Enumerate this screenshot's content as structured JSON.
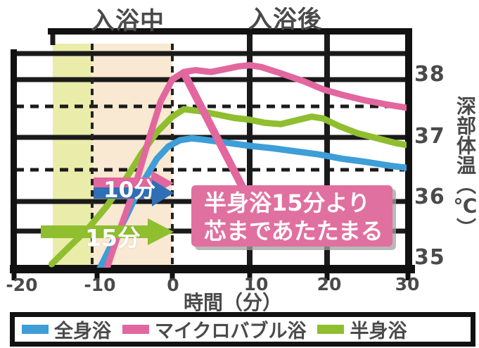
{
  "header": {
    "during_bath_label": "入浴中",
    "after_bath_label": "入浴後"
  },
  "y_axis": {
    "title": "深部体温（℃）",
    "tick_labels": [
      "38",
      "37",
      "36",
      "35"
    ]
  },
  "x_axis": {
    "title": "時間（分）",
    "tick_labels": [
      "-20",
      "-10",
      "0",
      "10",
      "20",
      "30"
    ]
  },
  "annotations": {
    "bath_10min_arrow_label": "10分",
    "bath_15min_arrow_label": "15分",
    "callout_line1": "半身浴15分より",
    "callout_line2": "芯まであたたまる"
  },
  "legend": {
    "items": [
      {
        "label": "全身浴",
        "color": "#3d9ed8"
      },
      {
        "label": "マイクロバブル浴",
        "color": "#e2679e"
      },
      {
        "label": "半身浴",
        "color": "#8fbe2f"
      }
    ]
  },
  "colors": {
    "callout_bg": "#e0709f",
    "leader_line": "#e2679e",
    "arrow_pink": "#e2679e",
    "arrow_blue": "#2f6fb6",
    "arrow_green": "#8fbe2f",
    "band_15min": "#eaeca9",
    "band_10min": "#f9e8d2",
    "grid": "#1a1a1a",
    "label_gray": "#4a4a4a"
  },
  "chart_data": {
    "type": "line",
    "xlabel": "時間（分）",
    "ylabel": "深部体温（℃）",
    "xlim": [
      -20.5,
      31.5
    ],
    "ylim": [
      34.85,
      38.7
    ],
    "x_ticks": [
      -20,
      -10,
      0,
      10,
      20,
      30
    ],
    "y_ticks": [
      38,
      37,
      36,
      35
    ],
    "grid": true,
    "legend_position": "bottom",
    "phase_bands_minutes": {
      "bath_15min_extra": [
        -15.5,
        -10.4
      ],
      "bath_10min": [
        -10.4,
        0
      ]
    },
    "annotations_text": [
      "入浴中",
      "入浴後",
      "10分",
      "15分",
      "半身浴15分より芯まであたたまる"
    ],
    "series": [
      {
        "id": "hanshin",
        "name": "半身浴",
        "color": "#8fbe2f",
        "points": [
          [
            -15.6,
            34.92
          ],
          [
            -13.5,
            35.18
          ],
          [
            -11,
            35.48
          ],
          [
            -8.5,
            35.85
          ],
          [
            -6,
            36.3
          ],
          [
            -4,
            36.7
          ],
          [
            -2,
            37.05
          ],
          [
            0,
            37.3
          ],
          [
            1.5,
            37.42
          ],
          [
            3.5,
            37.39
          ],
          [
            6,
            37.33
          ],
          [
            8,
            37.28
          ],
          [
            10,
            37.25
          ],
          [
            12,
            37.2
          ],
          [
            14,
            37.18
          ],
          [
            16,
            37.24
          ],
          [
            18,
            37.3
          ],
          [
            19.5,
            37.27
          ],
          [
            21.5,
            37.15
          ],
          [
            24,
            37.03
          ],
          [
            26.5,
            36.95
          ],
          [
            29,
            36.87
          ],
          [
            31.3,
            36.82
          ]
        ]
      },
      {
        "id": "zenshin",
        "name": "全身浴",
        "color": "#3d9ed8",
        "points": [
          [
            -9.5,
            34.82
          ],
          [
            -8,
            35.2
          ],
          [
            -6,
            35.68
          ],
          [
            -4,
            36.2
          ],
          [
            -2,
            36.62
          ],
          [
            -0.5,
            36.82
          ],
          [
            1,
            36.92
          ],
          [
            2.5,
            36.95
          ],
          [
            4,
            36.93
          ],
          [
            7,
            36.88
          ],
          [
            10,
            36.83
          ],
          [
            13,
            36.79
          ],
          [
            16,
            36.74
          ],
          [
            19,
            36.69
          ],
          [
            22,
            36.62
          ],
          [
            25,
            36.57
          ],
          [
            28,
            36.51
          ],
          [
            31.3,
            36.46
          ]
        ]
      },
      {
        "id": "microbubble",
        "name": "マイクロバブル浴",
        "color": "#e2679e",
        "points": [
          [
            -8.6,
            34.8
          ],
          [
            -7,
            35.4
          ],
          [
            -5,
            36.1
          ],
          [
            -3,
            36.95
          ],
          [
            -1.5,
            37.55
          ],
          [
            0,
            37.9
          ],
          [
            1.5,
            38.02
          ],
          [
            3,
            38.05
          ],
          [
            5,
            38.02
          ],
          [
            7,
            38.07
          ],
          [
            8.5,
            38.11
          ],
          [
            10,
            38.13
          ],
          [
            11.5,
            38.1
          ],
          [
            14,
            38.0
          ],
          [
            17,
            37.87
          ],
          [
            19.5,
            37.74
          ],
          [
            22,
            37.65
          ],
          [
            25,
            37.56
          ],
          [
            28,
            37.49
          ],
          [
            30,
            37.45
          ],
          [
            31.3,
            37.42
          ]
        ]
      }
    ]
  }
}
